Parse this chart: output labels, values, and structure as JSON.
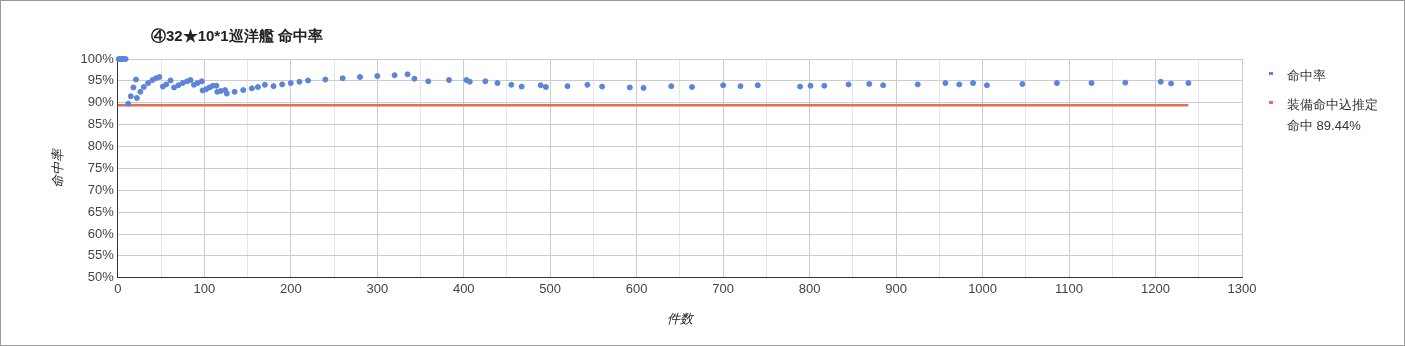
{
  "chart_data": {
    "type": "scatter",
    "title": "④32★10*1巡洋艦 命中率",
    "xlabel": "件数",
    "ylabel": "命中率",
    "xlim": [
      0,
      1300
    ],
    "xticks": [
      0,
      {
        "value": 50,
        "label": null
      },
      100,
      {
        "value": 150,
        "label": null
      },
      200,
      {
        "value": 250,
        "label": null
      },
      300,
      {
        "value": 350,
        "label": null
      },
      400,
      {
        "value": 450,
        "label": null
      },
      500,
      {
        "value": 550,
        "label": null
      },
      600,
      {
        "value": 650,
        "label": null
      },
      700,
      {
        "value": 750,
        "label": null
      },
      800,
      {
        "value": 850,
        "label": null
      },
      900,
      {
        "value": 950,
        "label": null
      },
      1000,
      {
        "value": 1050,
        "label": null
      },
      1100,
      {
        "value": 1150,
        "label": null
      },
      1200,
      {
        "value": 1250,
        "label": null
      },
      1300
    ],
    "ylim": [
      50,
      100
    ],
    "yticks": [
      {
        "value": 50,
        "label": "50%"
      },
      {
        "value": 55,
        "label": "55%"
      },
      {
        "value": 60,
        "label": "60%"
      },
      {
        "value": 65,
        "label": "65%"
      },
      {
        "value": 70,
        "label": "70%"
      },
      {
        "value": 75,
        "label": "75%"
      },
      {
        "value": 80,
        "label": "80%"
      },
      {
        "value": 85,
        "label": "85%"
      },
      {
        "value": 90,
        "label": "90%"
      },
      {
        "value": 95,
        "label": "95%"
      },
      {
        "value": 100,
        "label": "100%"
      }
    ],
    "grid": true,
    "legend": "top right",
    "marker": "circle",
    "series": [
      {
        "name": "命中率",
        "color": "#5b85d9",
        "x": [
          1,
          3,
          5,
          7,
          9,
          12,
          15,
          18,
          21,
          22,
          26,
          30,
          35,
          40,
          44,
          48,
          52,
          56,
          61,
          65,
          70,
          75,
          80,
          84,
          88,
          92,
          97,
          98,
          102,
          106,
          110,
          114,
          115,
          119,
          124,
          126,
          135,
          145,
          155,
          162,
          170,
          180,
          190,
          200,
          210,
          220,
          240,
          260,
          280,
          300,
          320,
          335,
          343,
          359,
          383,
          403,
          407,
          425,
          439,
          455,
          467,
          489,
          495,
          520,
          543,
          560,
          592,
          608,
          640,
          664,
          700,
          720,
          740,
          789,
          801,
          817,
          845,
          869,
          885,
          925,
          957,
          973,
          989,
          1005,
          1046,
          1086,
          1126,
          1165,
          1206,
          1218,
          1238
        ],
        "values": [
          100,
          100,
          100,
          100,
          100,
          89.8,
          91.5,
          93.5,
          95.3,
          91.1,
          92.5,
          93.6,
          94.5,
          95.2,
          95.6,
          95.9,
          93.7,
          94.2,
          95.1,
          93.5,
          94.0,
          94.5,
          94.9,
          95.2,
          94.1,
          94.5,
          94.9,
          92.8,
          93.1,
          93.5,
          93.9,
          93.9,
          92.5,
          92.7,
          92.9,
          92.1,
          92.5,
          92.9,
          93.3,
          93.6,
          94.1,
          93.8,
          94.2,
          94.5,
          94.8,
          95.1,
          95.3,
          95.6,
          95.9,
          96.1,
          96.3,
          96.5,
          95.5,
          94.9,
          95.2,
          95.2,
          94.8,
          94.9,
          94.5,
          94.1,
          93.7,
          94.0,
          93.6,
          93.8,
          94.1,
          93.7,
          93.5,
          93.4,
          93.8,
          93.6,
          94.0,
          93.8,
          94.0,
          93.7,
          93.9,
          93.9,
          94.2,
          94.3,
          94.0,
          94.2,
          94.5,
          94.2,
          94.5,
          94.0,
          94.3,
          94.5,
          94.5,
          94.6,
          94.8,
          94.4,
          94.5
        ]
      },
      {
        "name": "装備命中込推定命中 89.44%",
        "color": "#ea6a55",
        "type": "line",
        "marker": "none",
        "x": [
          0,
          1238
        ],
        "values": [
          89.44,
          89.44
        ]
      }
    ]
  }
}
